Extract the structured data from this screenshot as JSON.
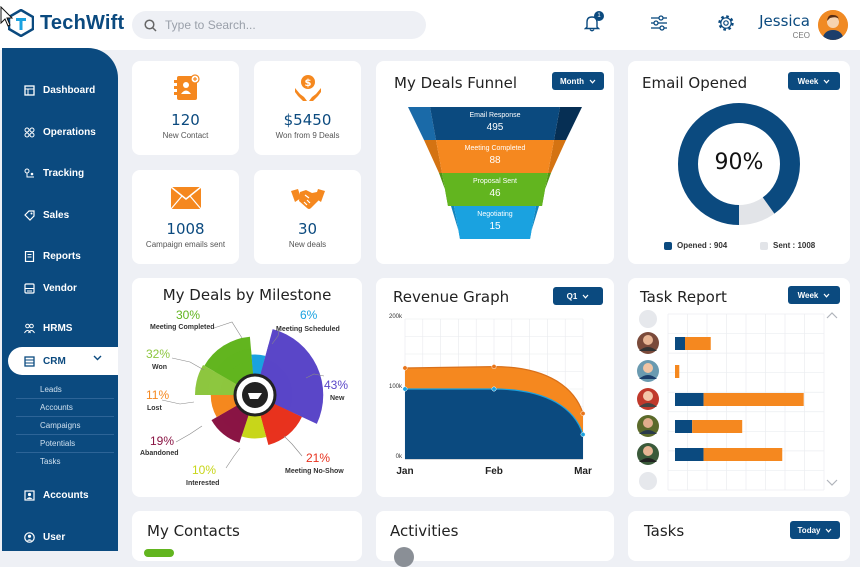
{
  "app": {
    "name": "TechWift"
  },
  "search": {
    "placeholder": "Type to Search..."
  },
  "header": {
    "notification_count": "1",
    "user_name": "Jessica",
    "user_role": "CEO"
  },
  "sidebar": {
    "items": [
      {
        "label": "Dashboard"
      },
      {
        "label": "Operations"
      },
      {
        "label": "Tracking"
      },
      {
        "label": "Sales"
      },
      {
        "label": "Reports"
      },
      {
        "label": "Vendor"
      },
      {
        "label": "HRMS"
      },
      {
        "label": "CRM"
      },
      {
        "label": "Accounts"
      },
      {
        "label": "User"
      }
    ],
    "crm_sub": [
      "Leads",
      "Accounts",
      "Campaigns",
      "Potentials",
      "Tasks"
    ]
  },
  "stats": [
    {
      "value": "120",
      "label": "New Contact"
    },
    {
      "value": "$5450",
      "label": "Won from 9 Deals"
    },
    {
      "value": "1008",
      "label": "Campaign emails sent"
    },
    {
      "value": "30",
      "label": "New deals"
    }
  ],
  "funnel": {
    "title": "My Deals Funnel",
    "filter": "Month",
    "stages": [
      {
        "label": "Email Response",
        "value": "495",
        "color": "#0b4a7f"
      },
      {
        "label": "Meeting Completed",
        "value": "88",
        "color": "#f5881f"
      },
      {
        "label": "Proposal Sent",
        "value": "46",
        "color": "#62b51f"
      },
      {
        "label": "Negotiating",
        "value": "15",
        "color": "#1aa2e0"
      }
    ]
  },
  "email": {
    "title": "Email Opened",
    "filter": "Week",
    "percent": "90%",
    "percent_value": 90,
    "legend_opened": "Opened : 904",
    "legend_sent": "Sent : 1008",
    "color_opened": "#0b4a7f",
    "color_sent": "#e2e4e8"
  },
  "milestone": {
    "title": "My Deals by Milestone",
    "segments": [
      {
        "pct": "30%",
        "label": "Meeting Completed",
        "color": "#62b51f"
      },
      {
        "pct": "6%",
        "label": "Meeting Scheduled",
        "color": "#1aa2e0"
      },
      {
        "pct": "43%",
        "label": "New",
        "color": "#5a46c8"
      },
      {
        "pct": "21%",
        "label": "Meeting No-Show",
        "color": "#e8321e"
      },
      {
        "pct": "10%",
        "label": "Interested",
        "color": "#c8d61a"
      },
      {
        "pct": "19%",
        "label": "Abandoned",
        "color": "#8a1544"
      },
      {
        "pct": "11%",
        "label": "Lost",
        "color": "#f5881f"
      },
      {
        "pct": "32%",
        "label": "Won",
        "color": "#8dc63f"
      }
    ]
  },
  "revenue": {
    "title": "Revenue Graph",
    "filter": "Q1",
    "chart_data": {
      "type": "area",
      "categories": [
        "Jan",
        "Feb",
        "Mar"
      ],
      "y_ticks": [
        "200k",
        "100k",
        "0k"
      ],
      "ylim": [
        0,
        200000
      ],
      "series": [
        {
          "color": "#0b4a7f",
          "values": [
            100000,
            100000,
            35000
          ]
        },
        {
          "color": "#f5881f",
          "values": [
            130000,
            132000,
            65000
          ]
        }
      ]
    }
  },
  "task_report": {
    "title": "Task Report",
    "filter": "Week",
    "chart_data": {
      "type": "bar",
      "xlim": [
        0,
        100
      ],
      "rows": [
        {
          "done": 7,
          "pending": 18
        },
        {
          "done": 0,
          "pending": 3
        },
        {
          "done": 20,
          "pending": 70
        },
        {
          "done": 12,
          "pending": 35
        },
        {
          "done": 20,
          "pending": 55
        }
      ],
      "color_done": "#0b4a7f",
      "color_pending": "#f5881f"
    }
  },
  "contacts": {
    "title": "My Contacts"
  },
  "activities": {
    "title": "Activities"
  },
  "tasks": {
    "title": "Tasks",
    "filter": "Today"
  }
}
